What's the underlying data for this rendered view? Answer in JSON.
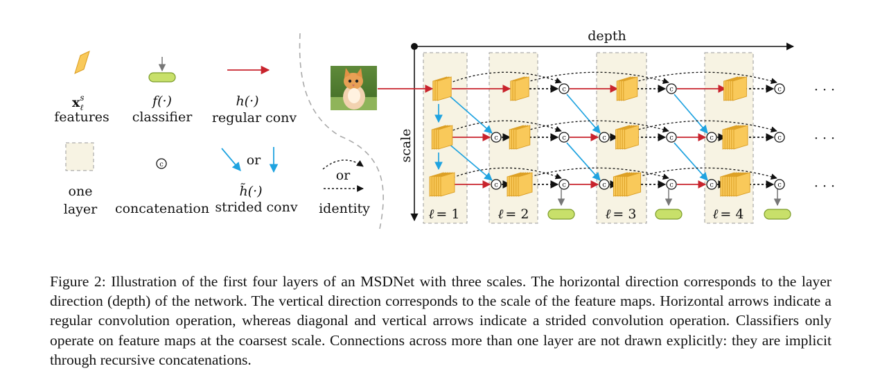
{
  "legend": {
    "features": {
      "symbol_main": "x",
      "symbol_sub": "ℓ",
      "symbol_sup": "s",
      "label": "features"
    },
    "classifier": {
      "symbol": "f(·)",
      "label": "classifier"
    },
    "regular_conv": {
      "symbol": "h(·)",
      "label": "regular conv"
    },
    "one_layer": {
      "label_line1": "one",
      "label_line2": "layer"
    },
    "concatenation": {
      "symbol": "c",
      "label": "concatenation"
    },
    "strided_conv": {
      "or": "or",
      "symbol": "h̃(·)",
      "label": "strided conv"
    },
    "identity": {
      "or": "or",
      "label": "identity"
    }
  },
  "diagram": {
    "depth_label": "depth",
    "scale_label": "scale",
    "concat_symbol": "c",
    "ellipsis": "· · ·",
    "layers": [
      {
        "ell": "ℓ",
        "eq": "= 1"
      },
      {
        "ell": "ℓ",
        "eq": "= 2"
      },
      {
        "ell": "ℓ",
        "eq": "= 3"
      },
      {
        "ell": "ℓ",
        "eq": "= 4"
      }
    ]
  },
  "colors": {
    "feature_fill": "#f9c95a",
    "feature_stroke": "#d99b1e",
    "classifier_fill": "#c8e06a",
    "classifier_stroke": "#7a9b2a",
    "regular_arrow": "#c8232c",
    "strided_arrow": "#1fa3e0",
    "layer_box_fill": "#f7f3e3",
    "layer_box_stroke": "#999999"
  },
  "caption": "Figure 2: Illustration of the first four layers of an MSDNet with three scales. The horizontal direction corresponds to the layer direction (depth) of the network. The vertical direction corresponds to the scale of the feature maps. Horizontal arrows indicate a regular convolution operation, whereas diagonal and vertical arrows indicate a strided convolution operation. Classifiers only operate on feature maps at the coarsest scale. Connections across more than one layer are not drawn explicitly: they are implicit through recursive concatenations."
}
